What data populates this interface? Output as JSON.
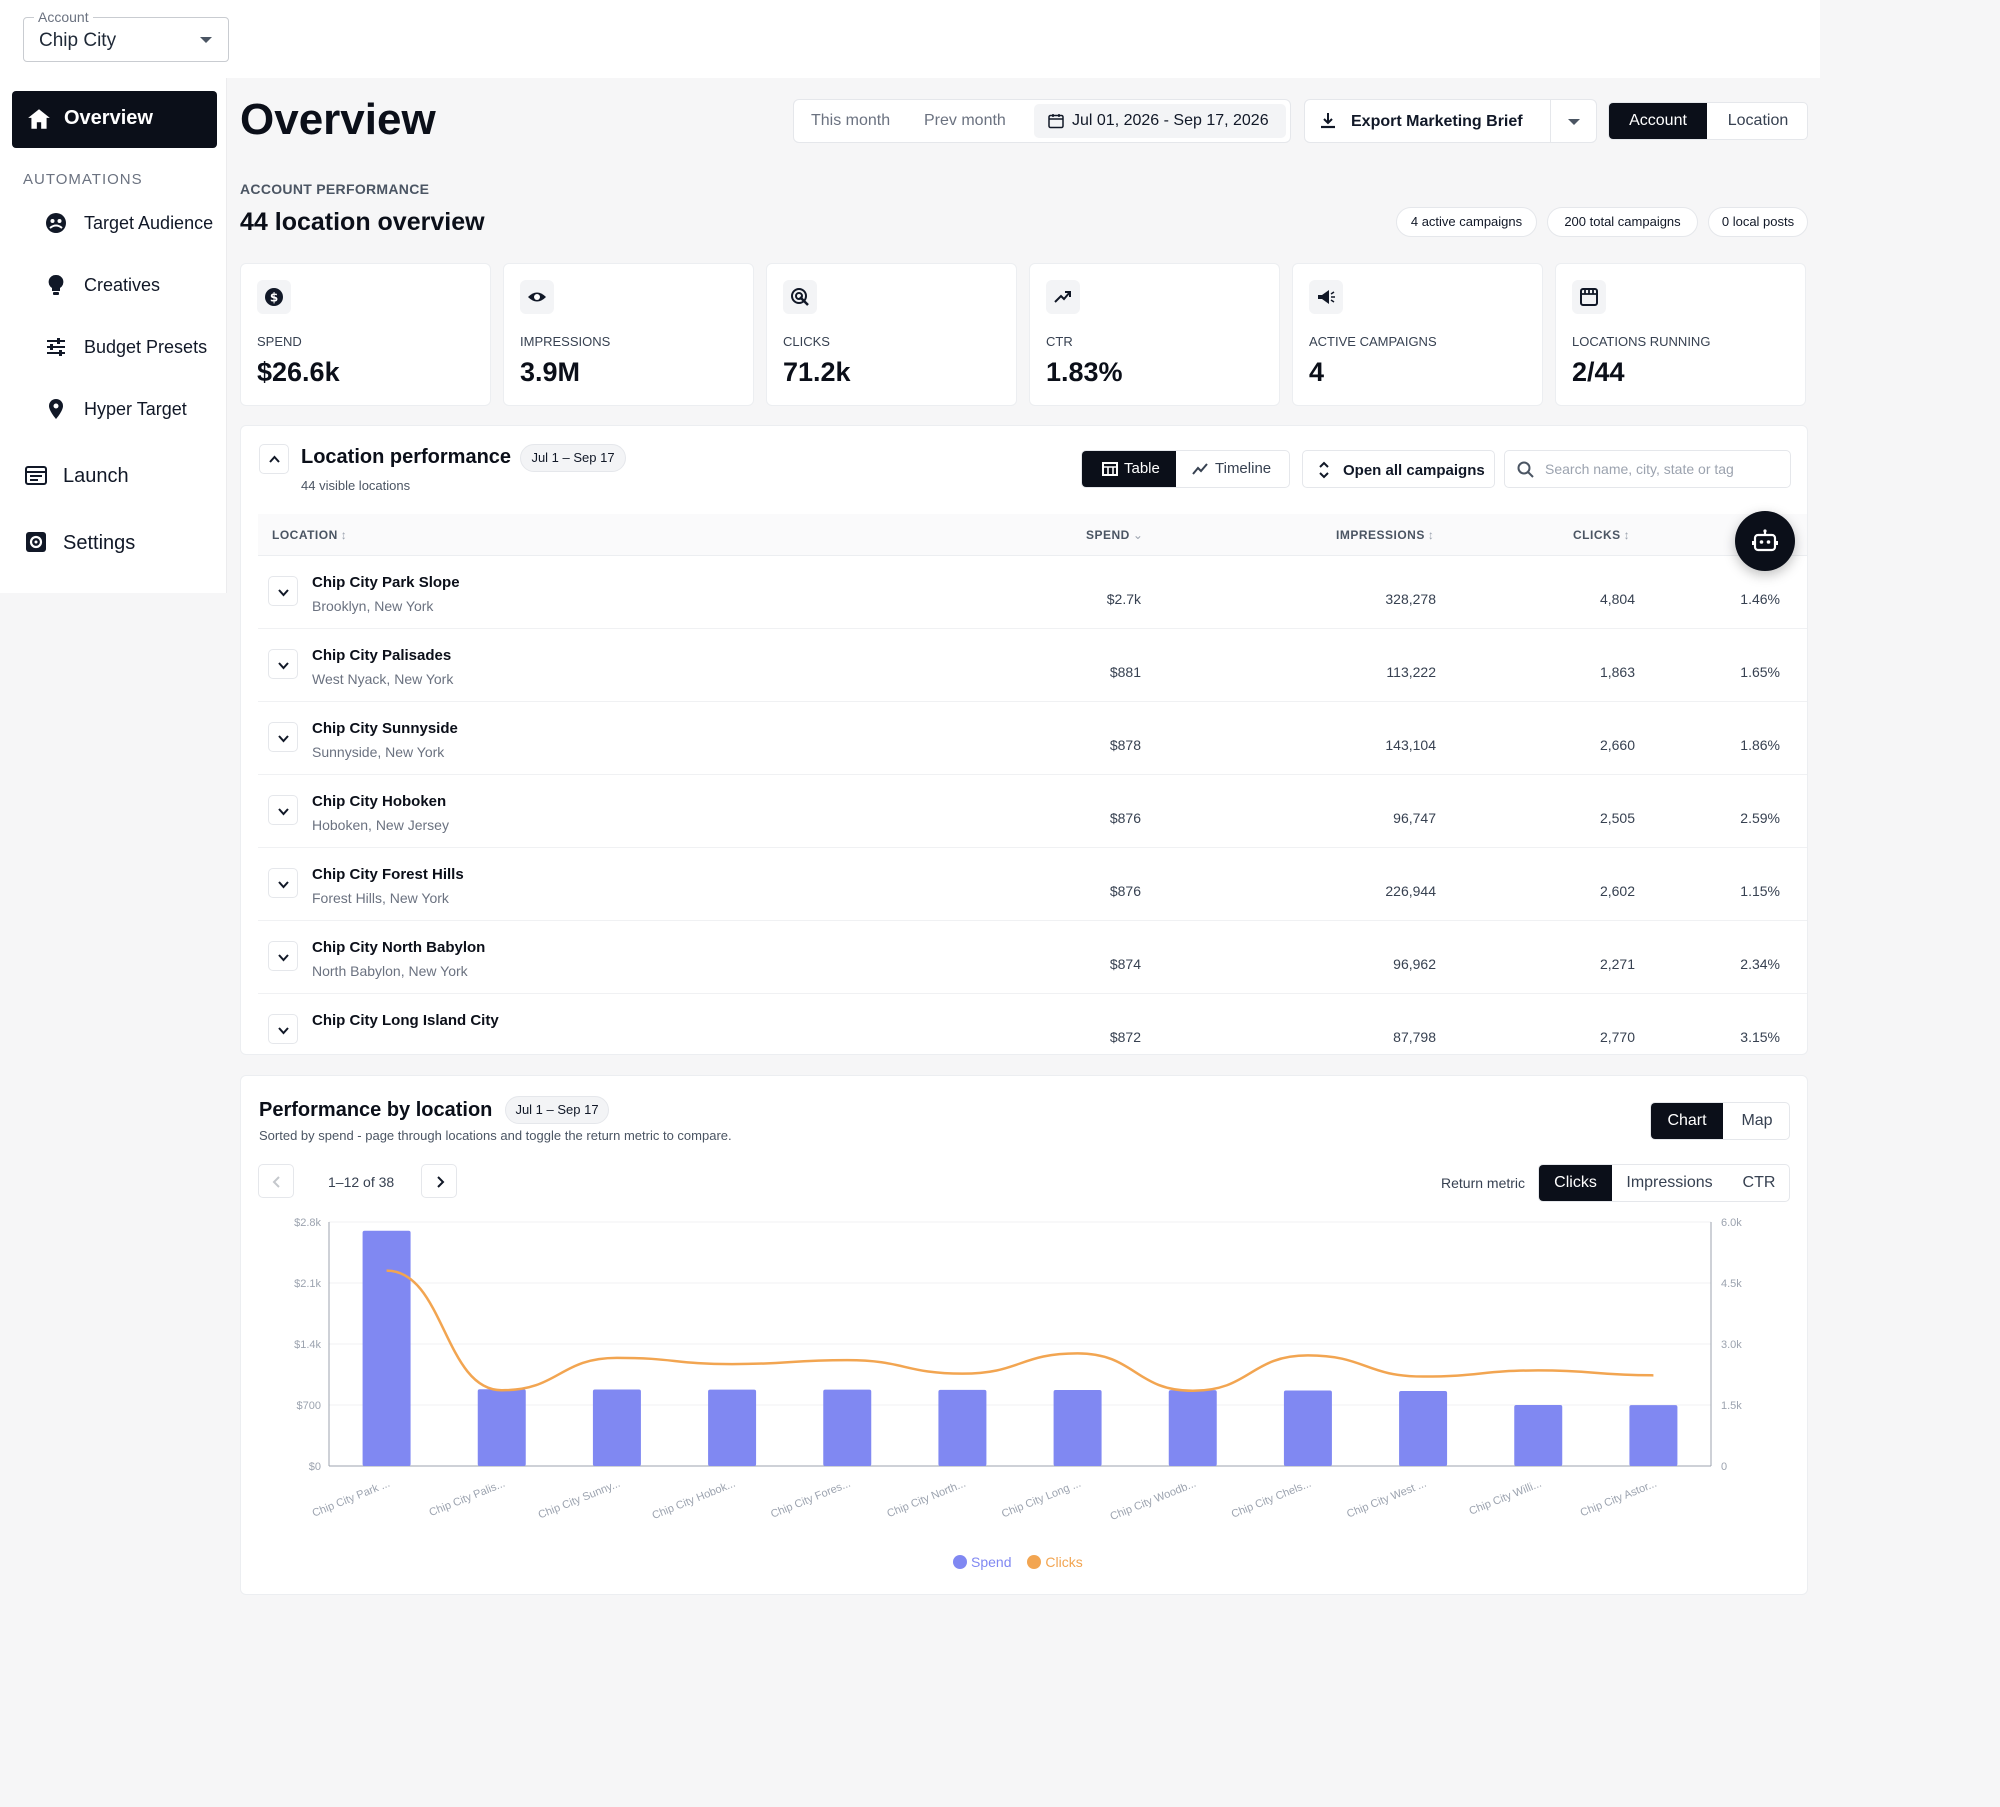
{
  "account": {
    "legend": "Account",
    "value": "Chip City"
  },
  "sidebar": {
    "overview": "Overview",
    "section": "AUTOMATIONS",
    "items": [
      {
        "label": "Target Audience",
        "icon": "audience-icon"
      },
      {
        "label": "Creatives",
        "icon": "lightbulb-icon"
      },
      {
        "label": "Budget Presets",
        "icon": "sliders-icon"
      },
      {
        "label": "Hyper Target",
        "icon": "map-pin-icon"
      }
    ],
    "launch": "Launch",
    "settings": "Settings"
  },
  "header": {
    "title": "Overview",
    "this_month": "This month",
    "prev_month": "Prev month",
    "date_range": "Jul 01, 2026 - Sep 17, 2026",
    "export": "Export Marketing Brief",
    "scope_options": [
      "Account",
      "Location"
    ]
  },
  "summary": {
    "kicker": "ACCOUNT PERFORMANCE",
    "title": "44 location overview",
    "pills": [
      "4 active campaigns",
      "200 total campaigns",
      "0 local posts"
    ]
  },
  "kpis": [
    {
      "label": "SPEND",
      "value": "$26.6k",
      "icon": "dollar-icon"
    },
    {
      "label": "IMPRESSIONS",
      "value": "3.9M",
      "icon": "eye-icon"
    },
    {
      "label": "CLICKS",
      "value": "71.2k",
      "icon": "click-icon"
    },
    {
      "label": "CTR",
      "value": "1.83%",
      "icon": "trend-icon"
    },
    {
      "label": "ACTIVE CAMPAIGNS",
      "value": "4",
      "icon": "megaphone-icon"
    },
    {
      "label": "LOCATIONS RUNNING",
      "value": "2/44",
      "icon": "store-icon"
    }
  ],
  "location_perf": {
    "title": "Location performance",
    "date": "Jul 1 – Sep 17",
    "subtitle": "44 visible locations",
    "views": [
      "Table",
      "Timeline"
    ],
    "open_all": "Open all campaigns",
    "search_placeholder": "Search name, city, state or tag",
    "columns": {
      "location": "LOCATION",
      "spend": "SPEND",
      "impressions": "IMPRESSIONS",
      "clicks": "CLICKS"
    },
    "rows": [
      {
        "name": "Chip City Park Slope",
        "city": "Brooklyn, New York",
        "spend": "$2.7k",
        "impressions": "328,278",
        "clicks": "4,804",
        "ctr": "1.46%"
      },
      {
        "name": "Chip City Palisades",
        "city": "West Nyack, New York",
        "spend": "$881",
        "impressions": "113,222",
        "clicks": "1,863",
        "ctr": "1.65%"
      },
      {
        "name": "Chip City Sunnyside",
        "city": "Sunnyside, New York",
        "spend": "$878",
        "impressions": "143,104",
        "clicks": "2,660",
        "ctr": "1.86%"
      },
      {
        "name": "Chip City Hoboken",
        "city": "Hoboken, New Jersey",
        "spend": "$876",
        "impressions": "96,747",
        "clicks": "2,505",
        "ctr": "2.59%"
      },
      {
        "name": "Chip City Forest Hills",
        "city": "Forest Hills, New York",
        "spend": "$876",
        "impressions": "226,944",
        "clicks": "2,602",
        "ctr": "1.15%"
      },
      {
        "name": "Chip City North Babylon",
        "city": "North Babylon, New York",
        "spend": "$874",
        "impressions": "96,962",
        "clicks": "2,271",
        "ctr": "2.34%"
      },
      {
        "name": "Chip City Long Island City",
        "city": "",
        "spend": "$872",
        "impressions": "87,798",
        "clicks": "2,770",
        "ctr": "3.15%"
      }
    ]
  },
  "perf_by_location": {
    "title": "Performance by location",
    "date": "Jul 1 – Sep 17",
    "subtitle": "Sorted by spend - page through locations and toggle the return metric to compare.",
    "views": [
      "Chart",
      "Map"
    ],
    "pager": "1–12 of 38",
    "metric_label": "Return metric",
    "metrics": [
      "Clicks",
      "Impressions",
      "CTR"
    ]
  },
  "chart_data": {
    "type": "bar",
    "categories": [
      "Chip City Park ...",
      "Chip City Palis...",
      "Chip City Sunny...",
      "Chip City Hobok...",
      "Chip City Fores...",
      "Chip City North...",
      "Chip City Long ...",
      "Chip City Woodb...",
      "Chip City Chels...",
      "Chip City West ...",
      "Chip City Willi...",
      "Chip City Astor..."
    ],
    "series": [
      {
        "name": "Spend",
        "type": "bar",
        "axis": "left",
        "color": "#8088f2",
        "values": [
          2700,
          881,
          878,
          876,
          876,
          874,
          872,
          870,
          866,
          860,
          700,
          698
        ]
      },
      {
        "name": "Clicks",
        "type": "line",
        "axis": "right",
        "color": "#f2a551",
        "values": [
          4804,
          1863,
          2660,
          2505,
          2602,
          2271,
          2770,
          1850,
          2720,
          2200,
          2350,
          2230
        ]
      }
    ],
    "y_left": {
      "ticks": [
        "$2.8k",
        "$2.1k",
        "$1.4k",
        "$700",
        "$0"
      ],
      "range": [
        0,
        2800
      ]
    },
    "y_right": {
      "ticks": [
        "6.0k",
        "4.5k",
        "3.0k",
        "1.5k",
        "0"
      ],
      "range": [
        0,
        6000
      ]
    },
    "legend_position": "bottom-center",
    "grid": true
  }
}
